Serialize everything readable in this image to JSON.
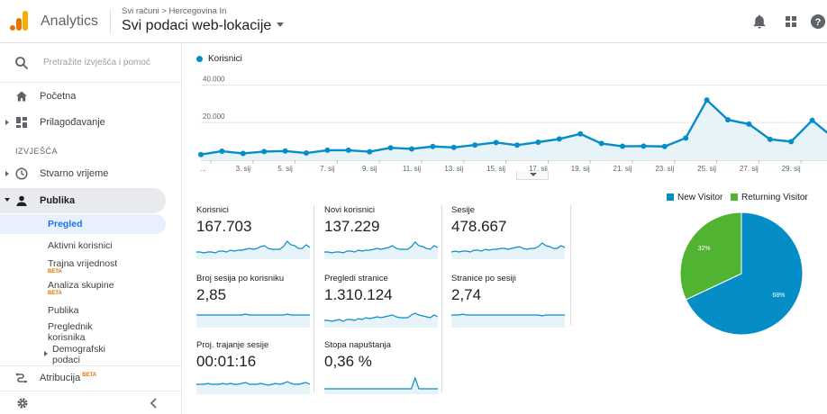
{
  "header": {
    "app_name": "Analytics",
    "breadcrumb_root": "Svi računi",
    "breadcrumb_account": "Hercegovina In",
    "property": "Svi podaci web-lokacije",
    "icons": [
      "bell-icon",
      "apps-grid-icon",
      "help-icon"
    ]
  },
  "sidebar": {
    "search_placeholder": "Pretražite izvješća i pomoć",
    "home": "Početna",
    "customization": "Prilagođavanje",
    "section": "IZVJEŠĆA",
    "realtime": "Stvarno vrijeme",
    "audience": "Publika",
    "audience_sub": {
      "overview": "Pregled",
      "active_users": "Aktivni korisnici",
      "lifetime_value": "Trajna vrijednost",
      "cohort": "Analiza skupine",
      "audiences": "Publika",
      "user_explorer_1": "Preglednik",
      "user_explorer_2": "korisnika",
      "demographics_1": "Demografski",
      "demographics_2": "podaci"
    },
    "beta": "BETA",
    "attribution": "Atribucija",
    "attribution_beta": "BETA"
  },
  "main": {
    "series_name": "Korisnici",
    "accent": "#058dc7",
    "metrics": [
      {
        "label": "Korisnici",
        "value": "167.703"
      },
      {
        "label": "Novi korisnici",
        "value": "137.229"
      },
      {
        "label": "Sesije",
        "value": "478.667"
      },
      {
        "label": "Broj sesija po korisniku",
        "value": "2,85"
      },
      {
        "label": "Pregledi stranice",
        "value": "1.310.124"
      },
      {
        "label": "Stranice po sesiji",
        "value": "2,74"
      },
      {
        "label": "Proj. trajanje sesije",
        "value": "00:01:16"
      },
      {
        "label": "Stopa napuštanja",
        "value": "0,36 %"
      }
    ]
  },
  "chart_data": [
    {
      "type": "line",
      "series": [
        {
          "name": "Korisnici",
          "values": [
            3000,
            4800,
            3600,
            4600,
            4900,
            3800,
            5300,
            5300,
            4500,
            6600,
            6000,
            7300,
            6800,
            8100,
            9400,
            8000,
            9600,
            11300,
            14000,
            8900,
            7400,
            7500,
            7300,
            11800,
            32000,
            21500,
            19200,
            11100,
            9900,
            21200,
            12000
          ]
        }
      ],
      "x": [
        "1. sij",
        "2. sij",
        "3. sij",
        "4. sij",
        "5. sij",
        "6. sij",
        "7. sij",
        "8. sij",
        "9. sij",
        "10. sij",
        "11. sij",
        "12. sij",
        "13. sij",
        "14. sij",
        "15. sij",
        "16. sij",
        "17. sij",
        "18. sij",
        "19. sij",
        "20. sij",
        "21. sij",
        "22. sij",
        "23. sij",
        "24. sij",
        "25. sij",
        "26. sij",
        "27. sij",
        "28. sij",
        "29. sij",
        "30. sij",
        "31. sij"
      ],
      "x_tick_labels": [
        "...",
        "3. sij",
        "5. sij",
        "7. sij",
        "9. sij",
        "11. sij",
        "13. sij",
        "15. sij",
        "17. sij",
        "19. sij",
        "21. sij",
        "23. sij",
        "25. sij",
        "27. sij",
        "29. sij",
        "3"
      ],
      "y_tick_labels": [
        "40.000",
        "20.000"
      ],
      "ylim": [
        0,
        45000
      ],
      "grid": true,
      "color": "#058dc7"
    },
    {
      "type": "pie",
      "categories": [
        "New Visitor",
        "Returning Visitor"
      ],
      "values": [
        68,
        32
      ],
      "slice_labels": [
        "68%",
        "32%"
      ],
      "colors": [
        "#058dc7",
        "#50b432"
      ],
      "legend": "top"
    }
  ]
}
